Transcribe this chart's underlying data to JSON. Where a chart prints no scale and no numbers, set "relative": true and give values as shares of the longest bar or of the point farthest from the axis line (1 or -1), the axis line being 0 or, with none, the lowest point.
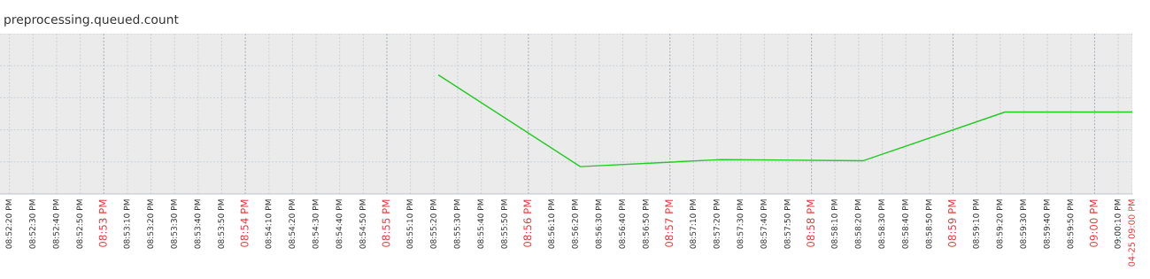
{
  "chart_data": {
    "type": "line",
    "title": "preprocessing.queued.count",
    "relative": true,
    "x": [
      20.92278,
      20.93944,
      20.95611,
      20.97278,
      20.98944,
      21.00444
    ],
    "series": [
      {
        "color": "#22cc22",
        "values": [
          1,
          0.23,
          0.29,
          0.28,
          0.69,
          0.69
        ]
      }
    ],
    "xlim": [
      20.87111,
      21.00444
    ],
    "xticks": [
      {
        "value": 20.87222,
        "label": "08:52:20 PM"
      },
      {
        "value": 20.875,
        "label": "08:52:30 PM"
      },
      {
        "value": 20.87778,
        "label": "08:52:40 PM"
      },
      {
        "value": 20.88056,
        "label": "08:52:50 PM"
      },
      {
        "value": 20.88333,
        "label": "08:53 PM"
      },
      {
        "value": 20.88611,
        "label": "08:53:10 PM"
      },
      {
        "value": 20.88889,
        "label": "08:53:20 PM"
      },
      {
        "value": 20.89167,
        "label": "08:53:30 PM"
      },
      {
        "value": 20.89444,
        "label": "08:53:40 PM"
      },
      {
        "value": 20.89722,
        "label": "08:53:50 PM"
      },
      {
        "value": 20.9,
        "label": "08:54 PM"
      },
      {
        "value": 20.90278,
        "label": "08:54:10 PM"
      },
      {
        "value": 20.90556,
        "label": "08:54:20 PM"
      },
      {
        "value": 20.90833,
        "label": "08:54:30 PM"
      },
      {
        "value": 20.91111,
        "label": "08:54:40 PM"
      },
      {
        "value": 20.91389,
        "label": "08:54:50 PM"
      },
      {
        "value": 20.91667,
        "label": "08:55 PM"
      },
      {
        "value": 20.91944,
        "label": "08:55:10 PM"
      },
      {
        "value": 20.92222,
        "label": "08:55:20 PM"
      },
      {
        "value": 20.925,
        "label": "08:55:30 PM"
      },
      {
        "value": 20.92778,
        "label": "08:55:40 PM"
      },
      {
        "value": 20.93056,
        "label": "08:55:50 PM"
      },
      {
        "value": 20.93333,
        "label": "08:56 PM"
      },
      {
        "value": 20.93611,
        "label": "08:56:10 PM"
      },
      {
        "value": 20.93889,
        "label": "08:56:20 PM"
      },
      {
        "value": 20.94167,
        "label": "08:56:30 PM"
      },
      {
        "value": 20.94444,
        "label": "08:56:40 PM"
      },
      {
        "value": 20.94722,
        "label": "08:56:50 PM"
      },
      {
        "value": 20.95,
        "label": "08:57 PM"
      },
      {
        "value": 20.95278,
        "label": "08:57:10 PM"
      },
      {
        "value": 20.95556,
        "label": "08:57:20 PM"
      },
      {
        "value": 20.95833,
        "label": "08:57:30 PM"
      },
      {
        "value": 20.96111,
        "label": "08:57:40 PM"
      },
      {
        "value": 20.96389,
        "label": "08:57:50 PM"
      },
      {
        "value": 20.96667,
        "label": "08:58 PM"
      },
      {
        "value": 20.96944,
        "label": "08:58:10 PM"
      },
      {
        "value": 20.97222,
        "label": "08:58:20 PM"
      },
      {
        "value": 20.975,
        "label": "08:58:30 PM"
      },
      {
        "value": 20.97778,
        "label": "08:58:40 PM"
      },
      {
        "value": 20.98056,
        "label": "08:58:50 PM"
      },
      {
        "value": 20.98333,
        "label": "08:59 PM"
      },
      {
        "value": 20.98611,
        "label": "08:59:10 PM"
      },
      {
        "value": 20.98889,
        "label": "08:59:20 PM"
      },
      {
        "value": 20.99167,
        "label": "08:59:30 PM"
      },
      {
        "value": 20.99444,
        "label": "08:59:40 PM"
      },
      {
        "value": 20.99722,
        "label": "08:59:50 PM"
      },
      {
        "value": 21.0,
        "label": "09:00 PM"
      },
      {
        "value": 21.00278,
        "label": "09:00:10 PM"
      },
      {
        "value": 21.00444,
        "label": "04-25 09:00 PM"
      }
    ],
    "grid": true,
    "marker": "none",
    "line_style": "solid",
    "legend": false
  }
}
